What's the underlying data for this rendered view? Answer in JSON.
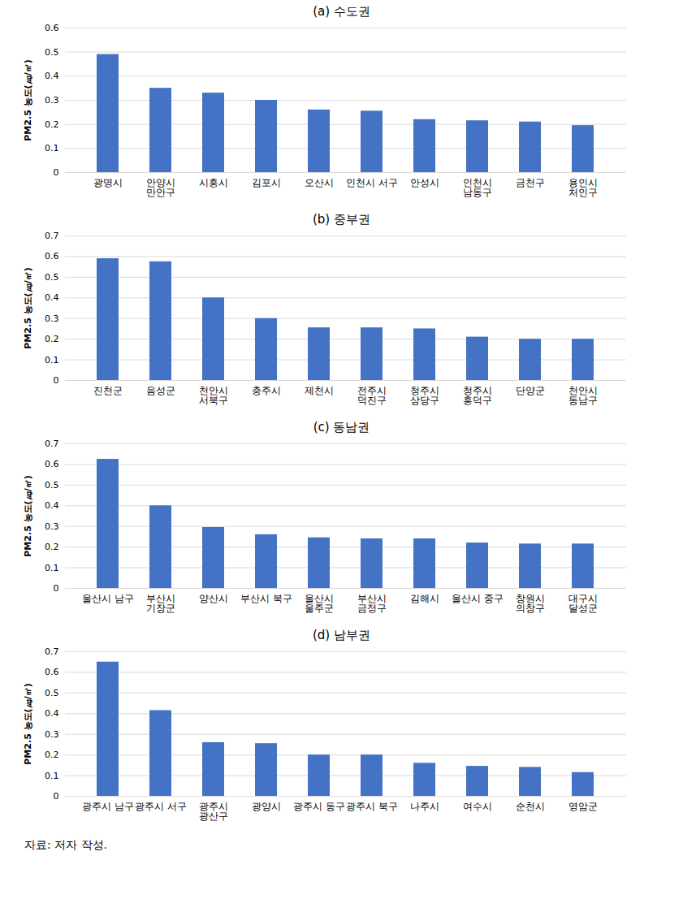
{
  "chart_data": [
    {
      "type": "bar",
      "title": "(a) 수도권",
      "ylabel": "PM2.5 농도(㎍/㎥)",
      "categories": [
        "광명시",
        "안양시\n만안구",
        "시흥시",
        "김포시",
        "오산시",
        "인천시 서구",
        "안성시",
        "인천시\n남동구",
        "금천구",
        "용인시\n처인구"
      ],
      "values": [
        0.49,
        0.35,
        0.33,
        0.3,
        0.26,
        0.255,
        0.22,
        0.215,
        0.21,
        0.195
      ],
      "color": "#4472c4",
      "ylim": [
        0,
        0.6
      ],
      "yticks": [
        0,
        0.1,
        0.2,
        0.3,
        0.4,
        0.5,
        0.6
      ],
      "grid": true
    },
    {
      "type": "bar",
      "title": "(b) 중부권",
      "ylabel": "PM2.5 농도(㎍/㎥)",
      "categories": [
        "진천군",
        "음성군",
        "천안시\n서북구",
        "충주시",
        "제천시",
        "전주시\n덕진구",
        "청주시\n상당구",
        "청주시\n흥덕구",
        "단양군",
        "천안시\n동남구"
      ],
      "values": [
        0.59,
        0.575,
        0.4,
        0.3,
        0.255,
        0.255,
        0.25,
        0.21,
        0.2,
        0.2
      ],
      "color": "#4472c4",
      "ylim": [
        0,
        0.7
      ],
      "yticks": [
        0,
        0.1,
        0.2,
        0.3,
        0.4,
        0.5,
        0.6,
        0.7
      ],
      "grid": true
    },
    {
      "type": "bar",
      "title": "(c) 동남권",
      "ylabel": "PM2.5 농도(㎍/㎥)",
      "categories": [
        "울산시 남구",
        "부산시\n기장군",
        "양산시",
        "부산시 북구",
        "울산시\n울주군",
        "부산시\n금정구",
        "김해시",
        "울산시 중구",
        "창원시\n의창구",
        "대구시\n달성군"
      ],
      "values": [
        0.625,
        0.4,
        0.295,
        0.26,
        0.245,
        0.24,
        0.24,
        0.22,
        0.215,
        0.215
      ],
      "color": "#4472c4",
      "ylim": [
        0,
        0.7
      ],
      "yticks": [
        0,
        0.1,
        0.2,
        0.3,
        0.4,
        0.5,
        0.6,
        0.7
      ],
      "grid": true
    },
    {
      "type": "bar",
      "title": "(d) 남부권",
      "ylabel": "PM2.5 농도(㎍/㎥)",
      "categories": [
        "광주시 남구",
        "광주시 서구",
        "광주시\n광산구",
        "광양시",
        "광주시 동구",
        "광주시 북구",
        "나주시",
        "여수시",
        "순천시",
        "영암군"
      ],
      "values": [
        0.65,
        0.415,
        0.26,
        0.255,
        0.2,
        0.2,
        0.16,
        0.145,
        0.14,
        0.115
      ],
      "color": "#4472c4",
      "ylim": [
        0,
        0.7
      ],
      "yticks": [
        0,
        0.1,
        0.2,
        0.3,
        0.4,
        0.5,
        0.6,
        0.7
      ],
      "grid": true
    }
  ],
  "caption": "자료: 저자 작성."
}
